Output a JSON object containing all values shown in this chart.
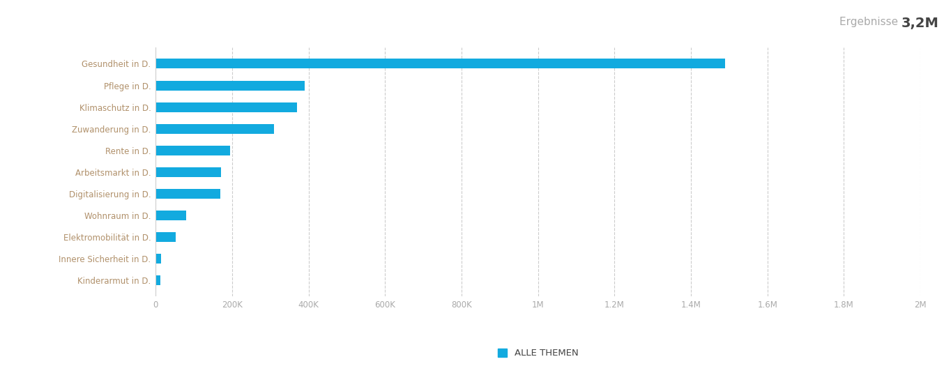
{
  "categories": [
    "Gesundheit in D.",
    "Pflege in D.",
    "Klimaschutz in D.",
    "Zuwanderung in D.",
    "Rente in D.",
    "Arbeitsmarkt in D.",
    "Digitalisierung in D.",
    "Wohnraum in D.",
    "Elektromobilität in D.",
    "Innere Sicherheit in D.",
    "Kinderarmut in D."
  ],
  "values": [
    1490000,
    390000,
    370000,
    310000,
    195000,
    170000,
    168000,
    80000,
    52000,
    14000,
    12000
  ],
  "bar_color": "#12AADF",
  "label_color": "#b0906a",
  "axis_label_color": "#AAAAAA",
  "background_color": "#FFFFFF",
  "grid_color": "#CCCCCC",
  "xlim": [
    0,
    2000000
  ],
  "xticks": [
    0,
    200000,
    400000,
    600000,
    800000,
    1000000,
    1200000,
    1400000,
    1600000,
    1800000,
    2000000
  ],
  "xtick_labels": [
    "0",
    "200K",
    "400K",
    "600K",
    "800K",
    "1M",
    "1.2M",
    "1.4M",
    "1.6M",
    "1.8M",
    "2M"
  ],
  "ergebnisse_label": "Ergebnisse ",
  "ergebnisse_value": "3,2M",
  "legend_label": "ALLE THEMEN",
  "bar_height": 0.45,
  "label_fontsize": 8.5,
  "tick_fontsize": 8.5,
  "ergebnisse_label_fontsize": 11,
  "ergebnisse_value_fontsize": 14,
  "legend_fontsize": 9.5
}
